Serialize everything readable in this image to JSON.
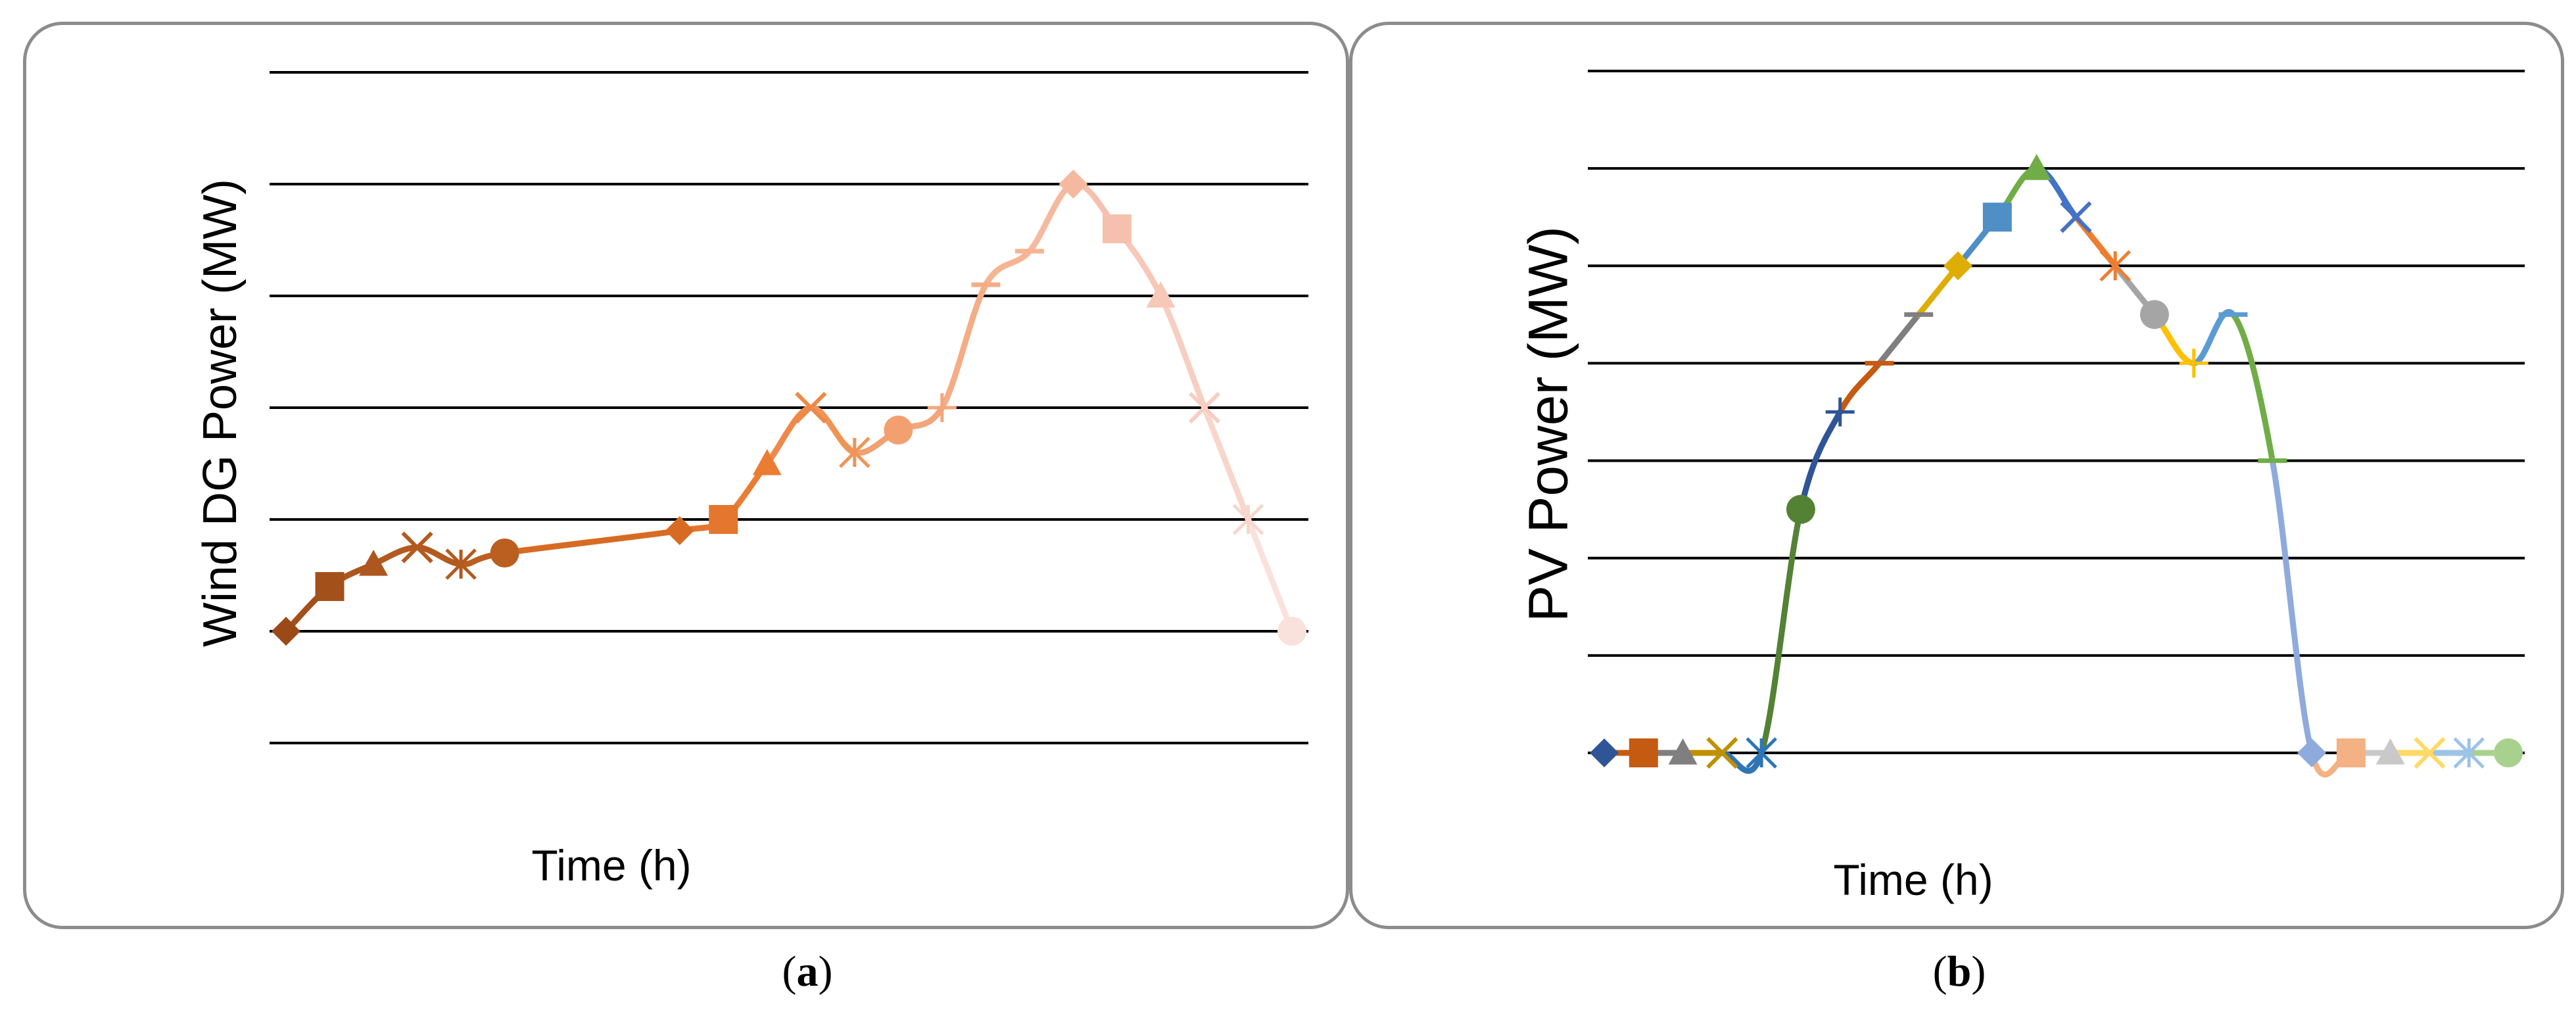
{
  "chart_data": [
    {
      "type": "line",
      "title": "",
      "xlabel": "Time (h)",
      "ylabel": "Wind DG Power (MW)",
      "ylim": [
        0,
        6
      ],
      "grid": true,
      "x": [
        1,
        2,
        3,
        4,
        5,
        6,
        10,
        11,
        12,
        13,
        14,
        15,
        16,
        17,
        18,
        19,
        20,
        21,
        22,
        23,
        24
      ],
      "values": [
        1.0,
        1.4,
        1.6,
        1.75,
        1.6,
        1.7,
        1.9,
        2.0,
        2.5,
        3.0,
        2.6,
        2.8,
        3.0,
        4.1,
        4.4,
        5.0,
        4.6,
        4.0,
        3.0,
        2.0,
        1.0
      ],
      "markers": [
        "diamond",
        "square",
        "triangle",
        "x",
        "star",
        "circle",
        "diamond",
        "square",
        "triangle",
        "x",
        "star",
        "circle",
        "plus",
        "dash",
        "dash",
        "diamond",
        "square",
        "triangle",
        "x",
        "star",
        "circle"
      ],
      "colors": [
        "#9b4a17",
        "#a4501b",
        "#ad561e",
        "#b35a1f",
        "#b35a1f",
        "#bb5f21",
        "#d86b23",
        "#e4762d",
        "#ea7d33",
        "#ed8a4a",
        "#f09455",
        "#f2a070",
        "#f3a57b",
        "#f4ad86",
        "#f5b492",
        "#f5b9a0",
        "#f6c0ae",
        "#f7c7b8",
        "#f8ceC2",
        "#f8d6cc",
        "#fae2dc"
      ]
    },
    {
      "type": "line",
      "title": "",
      "xlabel": "Time (h)",
      "ylabel": "PV Power (MW)",
      "ylim": [
        0,
        7
      ],
      "grid": true,
      "x": [
        1,
        2,
        3,
        4,
        5,
        6,
        7,
        8,
        9,
        10,
        11,
        12,
        13,
        14,
        15,
        16,
        17,
        18,
        19,
        20,
        21,
        22,
        23,
        24
      ],
      "values": [
        0,
        0,
        0,
        0,
        0,
        2.5,
        3.5,
        4.0,
        4.5,
        5.0,
        5.5,
        6.0,
        5.5,
        5.0,
        4.5,
        4.0,
        4.5,
        3.0,
        0,
        0,
        0,
        0,
        0,
        0
      ],
      "markers": [
        "diamond",
        "square",
        "triangle",
        "x",
        "star",
        "circle",
        "plus",
        "dash",
        "dash",
        "diamond",
        "square",
        "triangle",
        "x",
        "star",
        "circle",
        "plus",
        "dash",
        "dash",
        "diamond",
        "square",
        "triangle",
        "x",
        "star",
        "circle"
      ],
      "colors": [
        "#2f5597",
        "#c55a11",
        "#7f7f7f",
        "#bf9000",
        "#2e75b6",
        "#548235",
        "#2f5597",
        "#c55a11",
        "#7f7f7f",
        "#dfae06",
        "#4f8fc6",
        "#70ad47",
        "#4472c4",
        "#ed7d31",
        "#a5a5a5",
        "#ffc000",
        "#5b9bd5",
        "#70ad47",
        "#8faadc",
        "#f4b183",
        "#c9c9c9",
        "#ffd966",
        "#9dc3e6",
        "#a9d18e"
      ]
    }
  ],
  "captions": {
    "a": "a",
    "b": "b"
  }
}
